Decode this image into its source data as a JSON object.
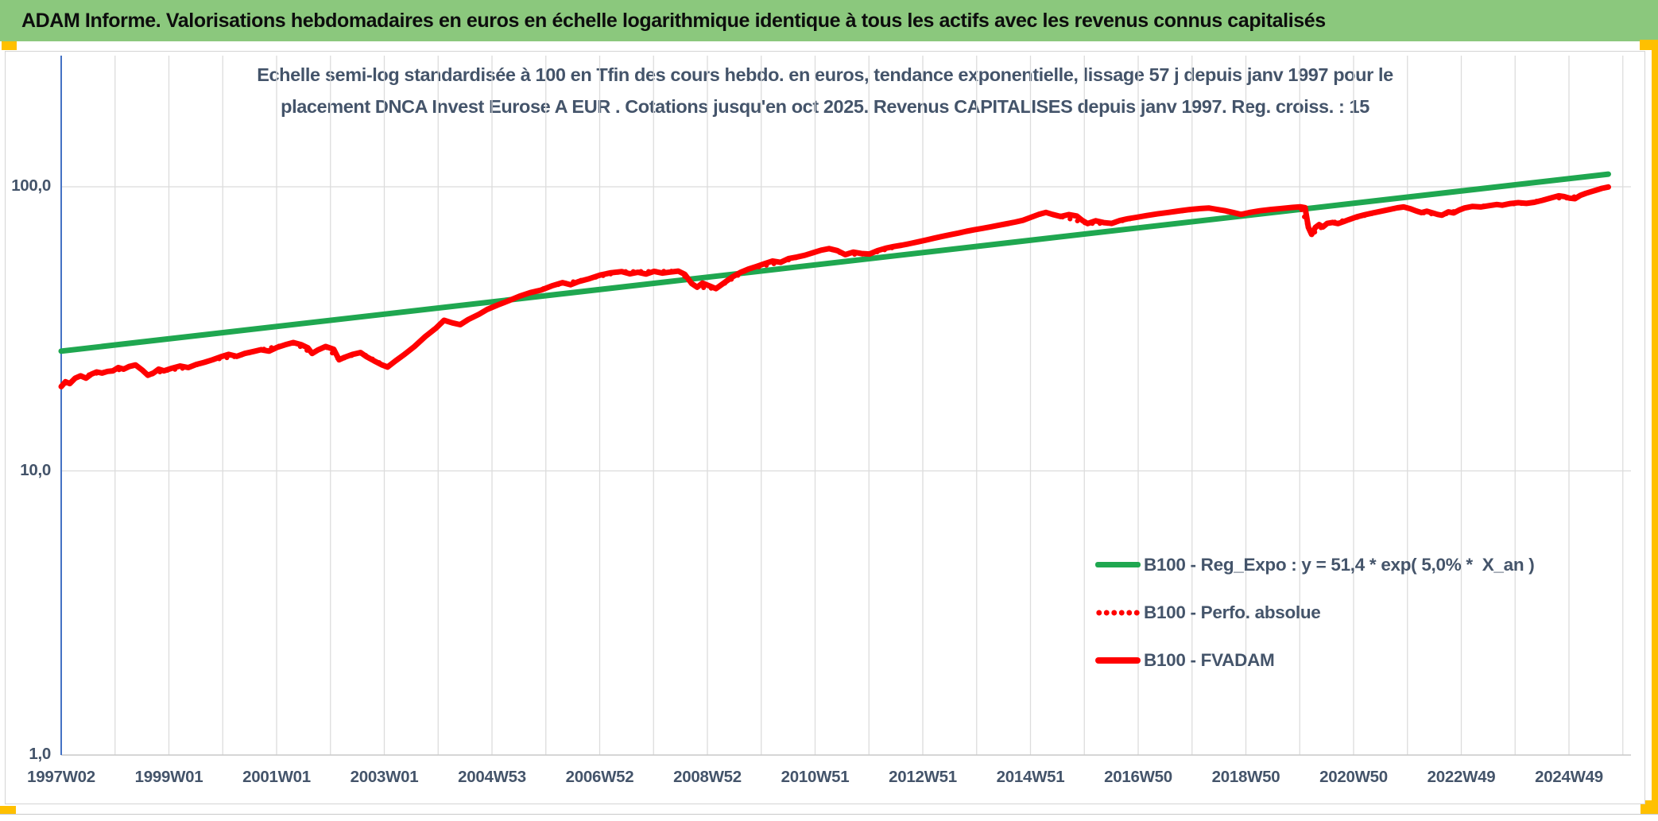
{
  "header": {
    "title": "ADAM Informe. Valorisations hebdomadaires en euros en échelle logarithmique identique à tous les actifs avec les revenus connus capitalisés"
  },
  "chart": {
    "title_line1": "Echelle semi-log standardisée à 100 en Tfin des cours hebdo. en euros, tendance exponentielle, lissage 57 j depuis janv 1997 pour le",
    "title_line2": "placement DNCA Invest Eurose A EUR . Cotations jusqu'en oct 2025. Revenus CAPITALISES depuis janv 1997. Reg. croiss. : 15",
    "legend": [
      {
        "label": "B100 - Reg_Expo : y = 51,4 * exp( 5,0% *  X_an )",
        "swatch": "green-solid"
      },
      {
        "label": "B100 - Perfo. absolue",
        "swatch": "red-dotted"
      },
      {
        "label": "B100 - FVADAM",
        "swatch": "red-solid"
      }
    ],
    "colors": {
      "header_background": "#8BC87D",
      "accent_gold": "#FFC000",
      "title_text": "#44546A",
      "axis_text": "#44546A",
      "gridline": "#DCDCDC",
      "y_axis_line": "#4472C4",
      "series_green": "#1FA750",
      "series_red": "#FF0000"
    }
  },
  "chart_data": {
    "type": "line",
    "title": "Echelle semi-log standardisée à 100 en Tfin des cours hebdo. en euros, tendance exponentielle, lissage 57 j depuis janv 1997 pour le placement DNCA Invest Eurose A EUR . Cotations jusqu'en oct 2025. Revenus CAPITALISES depuis janv 1997. Reg. croiss. : 15",
    "y_scale": "log",
    "ylim": [
      1.0,
      250.0
    ],
    "x_range_years": [
      1997.04,
      2025.77
    ],
    "grid": true,
    "legend_position": "center-right",
    "y_ticks": {
      "labels": [
        "100,0",
        "10,0",
        "1,0"
      ],
      "values": [
        100,
        10,
        1
      ]
    },
    "x_ticks": {
      "labels": [
        "1997W02",
        "1999W01",
        "2001W01",
        "2003W01",
        "2004W53",
        "2006W52",
        "2008W52",
        "2010W51",
        "2012W51",
        "2014W51",
        "2016W50",
        "2018W50",
        "2020W50",
        "2022W49",
        "2024W49"
      ],
      "interval_years": 2,
      "minor_gridline_years": 1
    },
    "series": [
      {
        "id": "reg-expo",
        "name": "B100 - Reg_Expo : y = 51,4 * exp( 5,0% *  X_an )",
        "color": "#1FA750",
        "style": "solid",
        "width": 7,
        "points": [
          [
            1997.04,
            26.4
          ],
          [
            2025.77,
            110.8
          ]
        ]
      },
      {
        "id": "perfo-absolue",
        "name": "B100 - Perfo. absolue",
        "color": "#FF0000",
        "style": "dotted",
        "width": 6,
        "points": [
          [
            1997.04,
            19.8
          ],
          [
            1997.3,
            21.2
          ],
          [
            1997.6,
            21.9
          ],
          [
            1997.9,
            22.4
          ],
          [
            1998.2,
            22.8
          ],
          [
            1998.42,
            23.6
          ],
          [
            1998.65,
            21.7
          ],
          [
            1998.95,
            22.5
          ],
          [
            1999.4,
            23.1
          ],
          [
            1999.85,
            24.6
          ],
          [
            2000.3,
            25.3
          ],
          [
            2000.75,
            26.7
          ],
          [
            2001.2,
            27.8
          ],
          [
            2001.35,
            28.3
          ],
          [
            2001.7,
            25.9
          ],
          [
            2001.95,
            27.4
          ],
          [
            2002.2,
            24.6
          ],
          [
            2002.6,
            26.1
          ],
          [
            2003.1,
            23.2
          ],
          [
            2003.6,
            27.4
          ],
          [
            2004.15,
            33.9
          ],
          [
            2004.45,
            32.7
          ],
          [
            2004.95,
            37.0
          ],
          [
            2005.55,
            41.2
          ],
          [
            2006.15,
            44.8
          ],
          [
            2006.85,
            47.5
          ],
          [
            2007.45,
            50.3
          ],
          [
            2008.05,
            50.4
          ],
          [
            2008.5,
            50.5
          ],
          [
            2008.85,
            44.3
          ],
          [
            2009.2,
            43.8
          ],
          [
            2009.8,
            51.3
          ],
          [
            2010.4,
            54.2
          ],
          [
            2011.0,
            58.6
          ],
          [
            2011.3,
            60.6
          ],
          [
            2011.6,
            57.7
          ],
          [
            2012.05,
            58.0
          ],
          [
            2012.65,
            62.3
          ],
          [
            2013.25,
            65.9
          ],
          [
            2013.85,
            69.7
          ],
          [
            2014.45,
            73.2
          ],
          [
            2014.9,
            76.2
          ],
          [
            2015.33,
            81.2
          ],
          [
            2015.6,
            78.6
          ],
          [
            2016.1,
            74.2
          ],
          [
            2016.55,
            74.3
          ],
          [
            2017.0,
            78.0
          ],
          [
            2017.6,
            81.2
          ],
          [
            2018.35,
            84.2
          ],
          [
            2018.95,
            79.9
          ],
          [
            2019.5,
            83.2
          ],
          [
            2020.05,
            85.0
          ],
          [
            2020.26,
            68.0
          ],
          [
            2020.55,
            74.3
          ],
          [
            2020.95,
            76.6
          ],
          [
            2021.55,
            82.0
          ],
          [
            2021.97,
            84.9
          ],
          [
            2022.3,
            81.1
          ],
          [
            2022.68,
            79.4
          ],
          [
            2023.1,
            84.2
          ],
          [
            2023.7,
            86.6
          ],
          [
            2024.25,
            87.4
          ],
          [
            2024.7,
            91.3
          ],
          [
            2025.05,
            91.2
          ],
          [
            2025.45,
            96.1
          ],
          [
            2025.77,
            99.8
          ]
        ]
      },
      {
        "id": "fvadam",
        "name": "B100 - FVADAM",
        "color": "#FF0000",
        "style": "solid",
        "width": 7,
        "points": [
          [
            1997.04,
            19.8
          ],
          [
            1997.12,
            20.6
          ],
          [
            1997.2,
            20.3
          ],
          [
            1997.3,
            21.2
          ],
          [
            1997.4,
            21.6
          ],
          [
            1997.5,
            21.2
          ],
          [
            1997.6,
            21.9
          ],
          [
            1997.7,
            22.3
          ],
          [
            1997.8,
            22.1
          ],
          [
            1997.9,
            22.4
          ],
          [
            1998.0,
            22.5
          ],
          [
            1998.1,
            23.1
          ],
          [
            1998.2,
            22.8
          ],
          [
            1998.3,
            23.3
          ],
          [
            1998.42,
            23.6
          ],
          [
            1998.55,
            22.6
          ],
          [
            1998.65,
            21.7
          ],
          [
            1998.75,
            22.1
          ],
          [
            1998.85,
            22.8
          ],
          [
            1998.95,
            22.5
          ],
          [
            1999.1,
            23.0
          ],
          [
            1999.25,
            23.4
          ],
          [
            1999.4,
            23.1
          ],
          [
            1999.55,
            23.7
          ],
          [
            1999.7,
            24.1
          ],
          [
            1999.85,
            24.6
          ],
          [
            2000.0,
            25.2
          ],
          [
            2000.15,
            25.7
          ],
          [
            2000.3,
            25.3
          ],
          [
            2000.45,
            25.9
          ],
          [
            2000.6,
            26.3
          ],
          [
            2000.75,
            26.7
          ],
          [
            2000.9,
            26.4
          ],
          [
            2001.05,
            27.2
          ],
          [
            2001.2,
            27.8
          ],
          [
            2001.35,
            28.3
          ],
          [
            2001.5,
            27.8
          ],
          [
            2001.62,
            27.1
          ],
          [
            2001.7,
            25.9
          ],
          [
            2001.8,
            26.6
          ],
          [
            2001.95,
            27.4
          ],
          [
            2002.1,
            26.8
          ],
          [
            2002.2,
            24.6
          ],
          [
            2002.3,
            25.1
          ],
          [
            2002.45,
            25.7
          ],
          [
            2002.6,
            26.1
          ],
          [
            2002.7,
            25.3
          ],
          [
            2002.85,
            24.4
          ],
          [
            2003.0,
            23.6
          ],
          [
            2003.1,
            23.2
          ],
          [
            2003.25,
            24.4
          ],
          [
            2003.4,
            25.6
          ],
          [
            2003.6,
            27.4
          ],
          [
            2003.8,
            29.7
          ],
          [
            2004.0,
            31.8
          ],
          [
            2004.15,
            33.9
          ],
          [
            2004.3,
            33.2
          ],
          [
            2004.45,
            32.7
          ],
          [
            2004.6,
            34.1
          ],
          [
            2004.8,
            35.6
          ],
          [
            2004.95,
            37.0
          ],
          [
            2005.15,
            38.4
          ],
          [
            2005.35,
            39.7
          ],
          [
            2005.55,
            41.2
          ],
          [
            2005.75,
            42.4
          ],
          [
            2005.95,
            43.3
          ],
          [
            2006.15,
            44.8
          ],
          [
            2006.35,
            46.0
          ],
          [
            2006.5,
            45.2
          ],
          [
            2006.65,
            46.4
          ],
          [
            2006.85,
            47.5
          ],
          [
            2007.05,
            48.9
          ],
          [
            2007.25,
            49.8
          ],
          [
            2007.45,
            50.3
          ],
          [
            2007.6,
            49.4
          ],
          [
            2007.75,
            50.0
          ],
          [
            2007.9,
            49.3
          ],
          [
            2008.05,
            50.4
          ],
          [
            2008.2,
            49.7
          ],
          [
            2008.35,
            50.1
          ],
          [
            2008.5,
            50.5
          ],
          [
            2008.62,
            49.2
          ],
          [
            2008.75,
            45.6
          ],
          [
            2008.85,
            44.3
          ],
          [
            2008.95,
            45.8
          ],
          [
            2009.1,
            44.6
          ],
          [
            2009.2,
            43.8
          ],
          [
            2009.35,
            45.9
          ],
          [
            2009.5,
            48.1
          ],
          [
            2009.65,
            49.9
          ],
          [
            2009.8,
            51.3
          ],
          [
            2009.95,
            52.4
          ],
          [
            2010.1,
            53.6
          ],
          [
            2010.25,
            54.8
          ],
          [
            2010.4,
            54.2
          ],
          [
            2010.55,
            55.9
          ],
          [
            2010.7,
            56.6
          ],
          [
            2010.85,
            57.4
          ],
          [
            2011.0,
            58.6
          ],
          [
            2011.15,
            59.8
          ],
          [
            2011.3,
            60.6
          ],
          [
            2011.45,
            59.6
          ],
          [
            2011.6,
            57.7
          ],
          [
            2011.75,
            58.9
          ],
          [
            2011.9,
            58.2
          ],
          [
            2012.05,
            58.0
          ],
          [
            2012.2,
            59.6
          ],
          [
            2012.35,
            60.8
          ],
          [
            2012.5,
            61.6
          ],
          [
            2012.65,
            62.3
          ],
          [
            2012.8,
            63.1
          ],
          [
            2012.95,
            64.0
          ],
          [
            2013.1,
            64.9
          ],
          [
            2013.25,
            65.9
          ],
          [
            2013.4,
            66.9
          ],
          [
            2013.55,
            67.8
          ],
          [
            2013.7,
            68.7
          ],
          [
            2013.85,
            69.7
          ],
          [
            2014.0,
            70.6
          ],
          [
            2014.15,
            71.4
          ],
          [
            2014.3,
            72.3
          ],
          [
            2014.45,
            73.2
          ],
          [
            2014.6,
            74.1
          ],
          [
            2014.75,
            75.1
          ],
          [
            2014.9,
            76.2
          ],
          [
            2015.05,
            78.1
          ],
          [
            2015.2,
            80.0
          ],
          [
            2015.33,
            81.2
          ],
          [
            2015.45,
            79.9
          ],
          [
            2015.6,
            78.6
          ],
          [
            2015.75,
            79.8
          ],
          [
            2015.9,
            78.9
          ],
          [
            2016.0,
            76.2
          ],
          [
            2016.1,
            74.2
          ],
          [
            2016.25,
            75.9
          ],
          [
            2016.4,
            74.8
          ],
          [
            2016.55,
            74.3
          ],
          [
            2016.7,
            76.1
          ],
          [
            2016.85,
            77.2
          ],
          [
            2017.0,
            78.0
          ],
          [
            2017.2,
            79.2
          ],
          [
            2017.4,
            80.3
          ],
          [
            2017.6,
            81.2
          ],
          [
            2017.8,
            82.2
          ],
          [
            2018.0,
            83.2
          ],
          [
            2018.2,
            83.8
          ],
          [
            2018.35,
            84.2
          ],
          [
            2018.5,
            83.3
          ],
          [
            2018.65,
            82.4
          ],
          [
            2018.8,
            81.2
          ],
          [
            2018.95,
            79.9
          ],
          [
            2019.1,
            81.1
          ],
          [
            2019.3,
            82.3
          ],
          [
            2019.5,
            83.2
          ],
          [
            2019.7,
            83.9
          ],
          [
            2019.9,
            84.6
          ],
          [
            2020.05,
            85.0
          ],
          [
            2020.14,
            84.4
          ],
          [
            2020.2,
            72.0
          ],
          [
            2020.26,
            68.0
          ],
          [
            2020.33,
            71.9
          ],
          [
            2020.4,
            73.6
          ],
          [
            2020.47,
            72.2
          ],
          [
            2020.55,
            74.3
          ],
          [
            2020.65,
            74.9
          ],
          [
            2020.75,
            74.2
          ],
          [
            2020.85,
            75.3
          ],
          [
            2020.95,
            76.6
          ],
          [
            2021.1,
            78.4
          ],
          [
            2021.25,
            79.7
          ],
          [
            2021.4,
            80.9
          ],
          [
            2021.55,
            82.0
          ],
          [
            2021.7,
            83.1
          ],
          [
            2021.85,
            84.3
          ],
          [
            2021.97,
            84.9
          ],
          [
            2022.1,
            83.6
          ],
          [
            2022.2,
            82.2
          ],
          [
            2022.3,
            81.1
          ],
          [
            2022.4,
            82.0
          ],
          [
            2022.5,
            81.0
          ],
          [
            2022.6,
            79.9
          ],
          [
            2022.68,
            79.4
          ],
          [
            2022.8,
            81.6
          ],
          [
            2022.9,
            80.9
          ],
          [
            2023.0,
            82.8
          ],
          [
            2023.1,
            84.2
          ],
          [
            2023.25,
            85.3
          ],
          [
            2023.4,
            84.9
          ],
          [
            2023.55,
            85.8
          ],
          [
            2023.7,
            86.6
          ],
          [
            2023.8,
            86.1
          ],
          [
            2023.95,
            87.3
          ],
          [
            2024.1,
            87.9
          ],
          [
            2024.25,
            87.4
          ],
          [
            2024.4,
            88.2
          ],
          [
            2024.55,
            89.6
          ],
          [
            2024.7,
            91.3
          ],
          [
            2024.85,
            92.9
          ],
          [
            2024.95,
            92.4
          ],
          [
            2025.05,
            91.2
          ],
          [
            2025.15,
            90.8
          ],
          [
            2025.25,
            93.2
          ],
          [
            2025.35,
            94.8
          ],
          [
            2025.45,
            96.1
          ],
          [
            2025.55,
            97.4
          ],
          [
            2025.65,
            98.7
          ],
          [
            2025.77,
            99.8
          ]
        ]
      }
    ]
  }
}
